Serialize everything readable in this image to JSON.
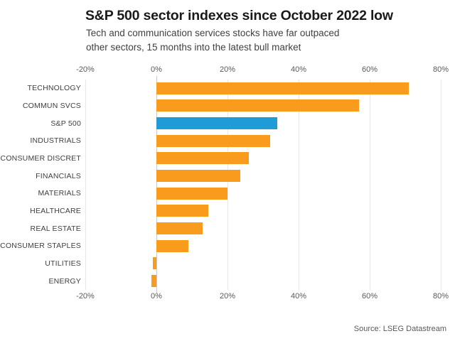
{
  "header": {
    "title": "S&P 500 sector indexes since October 2022 low",
    "subtitle_line1": "Tech and communication services stocks have far outpaced",
    "subtitle_line2": "other sectors, 15 months into the latest bull market"
  },
  "footer": {
    "source": "Source: LSEG Datastream"
  },
  "chart_data": {
    "type": "bar",
    "orientation": "horizontal",
    "title": "S&P 500 sector indexes since October 2022 low",
    "categories": [
      "TECHNOLOGY",
      "COMMUN SVCS",
      "S&P 500",
      "INDUSTRIALS",
      "CONSUMER DISCRET",
      "FINANCIALS",
      "MATERIALS",
      "HEALTHCARE",
      "REAL ESTATE",
      "CONSUMER STAPLES",
      "UTILITIES",
      "ENERGY"
    ],
    "values": [
      71,
      57,
      34,
      32,
      26,
      23.5,
      20,
      14.5,
      13,
      9,
      -1,
      -1.5
    ],
    "unit": "%",
    "highlight_category": "S&P 500",
    "colors": {
      "bar": "#F99B1C",
      "highlight": "#1F9BD7",
      "gridline": "#e9e9e9",
      "zero_line": "#c9c9c9"
    },
    "x_axis": {
      "min": -20,
      "max": 80,
      "tick_values": [
        -20,
        0,
        20,
        40,
        60,
        80
      ],
      "tick_labels": [
        "-20%",
        "0%",
        "20%",
        "40%",
        "60%",
        "80%"
      ],
      "shown_on": "top and bottom"
    },
    "grid": true,
    "legend": "none"
  }
}
